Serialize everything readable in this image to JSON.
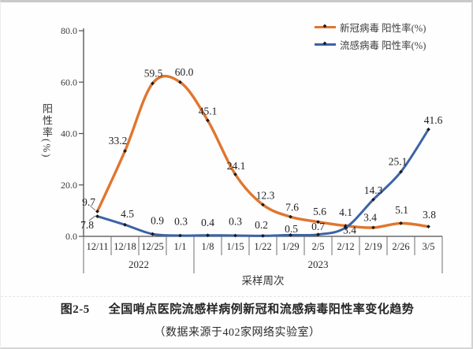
{
  "figure": {
    "figure_no": "图2-5",
    "title": "全国哨点医院流感样病例新冠和流感病毒阳性率变化趋势",
    "source": "（数据来源于402家网络实验室）"
  },
  "chart_data": {
    "type": "line",
    "title": "全国哨点医院流感样病例新冠和流感病毒阳性率变化趋势",
    "xlabel": "采样周次",
    "ylabel": "阳性率(%)",
    "ylim": [
      0,
      80
    ],
    "yticks": [
      0.0,
      20.0,
      40.0,
      60.0,
      80.0
    ],
    "grid": false,
    "smooth": true,
    "legend_position": "top-right",
    "categories": [
      "12/11",
      "12/18",
      "12/25",
      "1/1",
      "1/8",
      "1/15",
      "1/22",
      "1/29",
      "2/5",
      "2/12",
      "2/19",
      "2/26",
      "3/5"
    ],
    "year_groups": [
      {
        "label": "2022",
        "span": 4
      },
      {
        "label": "2023",
        "span": 9
      }
    ],
    "series": [
      {
        "name": "新冠病毒 阳性率(%)",
        "color": "#e0762f",
        "marker_color": "#1a1a1a",
        "values": [
          9.7,
          33.2,
          59.5,
          60.0,
          45.1,
          24.1,
          12.3,
          7.6,
          5.6,
          4.1,
          3.4,
          5.1,
          3.8
        ]
      },
      {
        "name": "流感病毒 阳性率(%)",
        "color": "#3c63a6",
        "marker_color": "#1a1a1a",
        "values": [
          7.8,
          4.5,
          0.9,
          0.3,
          0.4,
          0.3,
          0.2,
          0.5,
          0.7,
          3.4,
          14.3,
          25.1,
          41.6
        ]
      }
    ]
  }
}
